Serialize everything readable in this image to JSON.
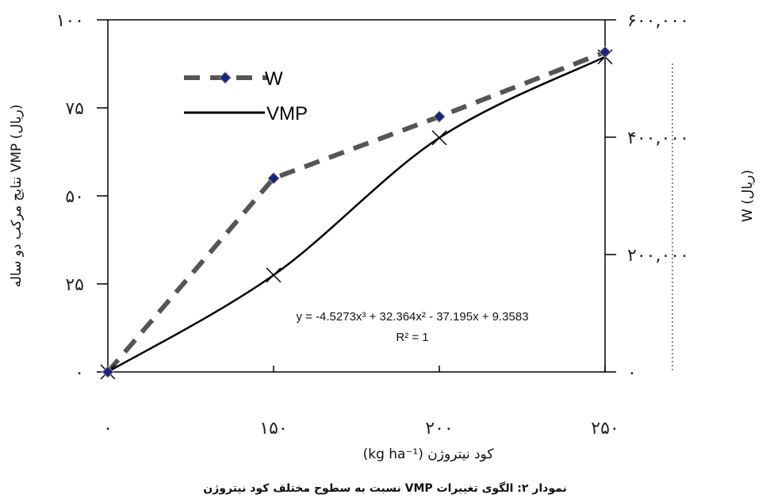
{
  "chart_data": {
    "type": "line",
    "x_tick_labels": [
      "۰",
      "۱۵۰",
      "۲۰۰",
      "۲۵۰"
    ],
    "x_positions": [
      0,
      1,
      2,
      3
    ],
    "xlabel": "کود نیتروژن (kg ha⁻¹)",
    "ylabel_left": "(ریال) VMP نتایج مرکب دو ساله",
    "ylabel_right": "W (ریال)",
    "ylim_left": [
      0,
      100
    ],
    "ylim_right": [
      0,
      600000
    ],
    "left_ticks": [
      {
        "value": 0,
        "label": "۰"
      },
      {
        "value": 25,
        "label": "۲۵"
      },
      {
        "value": 50,
        "label": "۵۰"
      },
      {
        "value": 75,
        "label": "۷۵"
      },
      {
        "value": 100,
        "label": "۱۰۰"
      }
    ],
    "right_ticks": [
      {
        "value": 0,
        "label": "۰"
      },
      {
        "value": 200000,
        "label": "۲۰۰,۰۰۰"
      },
      {
        "value": 400000,
        "label": "۴۰۰,۰۰۰"
      },
      {
        "value": 600000,
        "label": "۶۰۰,۰۰۰"
      }
    ],
    "series": [
      {
        "name": "W",
        "axis": "right",
        "style": "dashed",
        "marker": "diamond",
        "values": [
          0,
          330000,
          435000,
          545000
        ]
      },
      {
        "name": "VMP",
        "axis": "left",
        "style": "solid",
        "marker": "x",
        "values": [
          0,
          27.5,
          66.5,
          89.5
        ],
        "polynomial": [
          -4.5273,
          32.364,
          -37.195,
          9.3583
        ]
      }
    ],
    "legend_position": "top-left",
    "annotations": {
      "equation": "y = -4.5273x³ + 32.364x² - 37.195x + 9.3583",
      "r_squared": "R² = 1"
    },
    "colors": {
      "W_marker": "#1a237e",
      "W_line": "#555555",
      "VMP_line": "#000000"
    }
  },
  "caption": "نمودار ۲: الگوی تغییرات VMP نسبت به سطوح مختلف کود نیتروژن"
}
